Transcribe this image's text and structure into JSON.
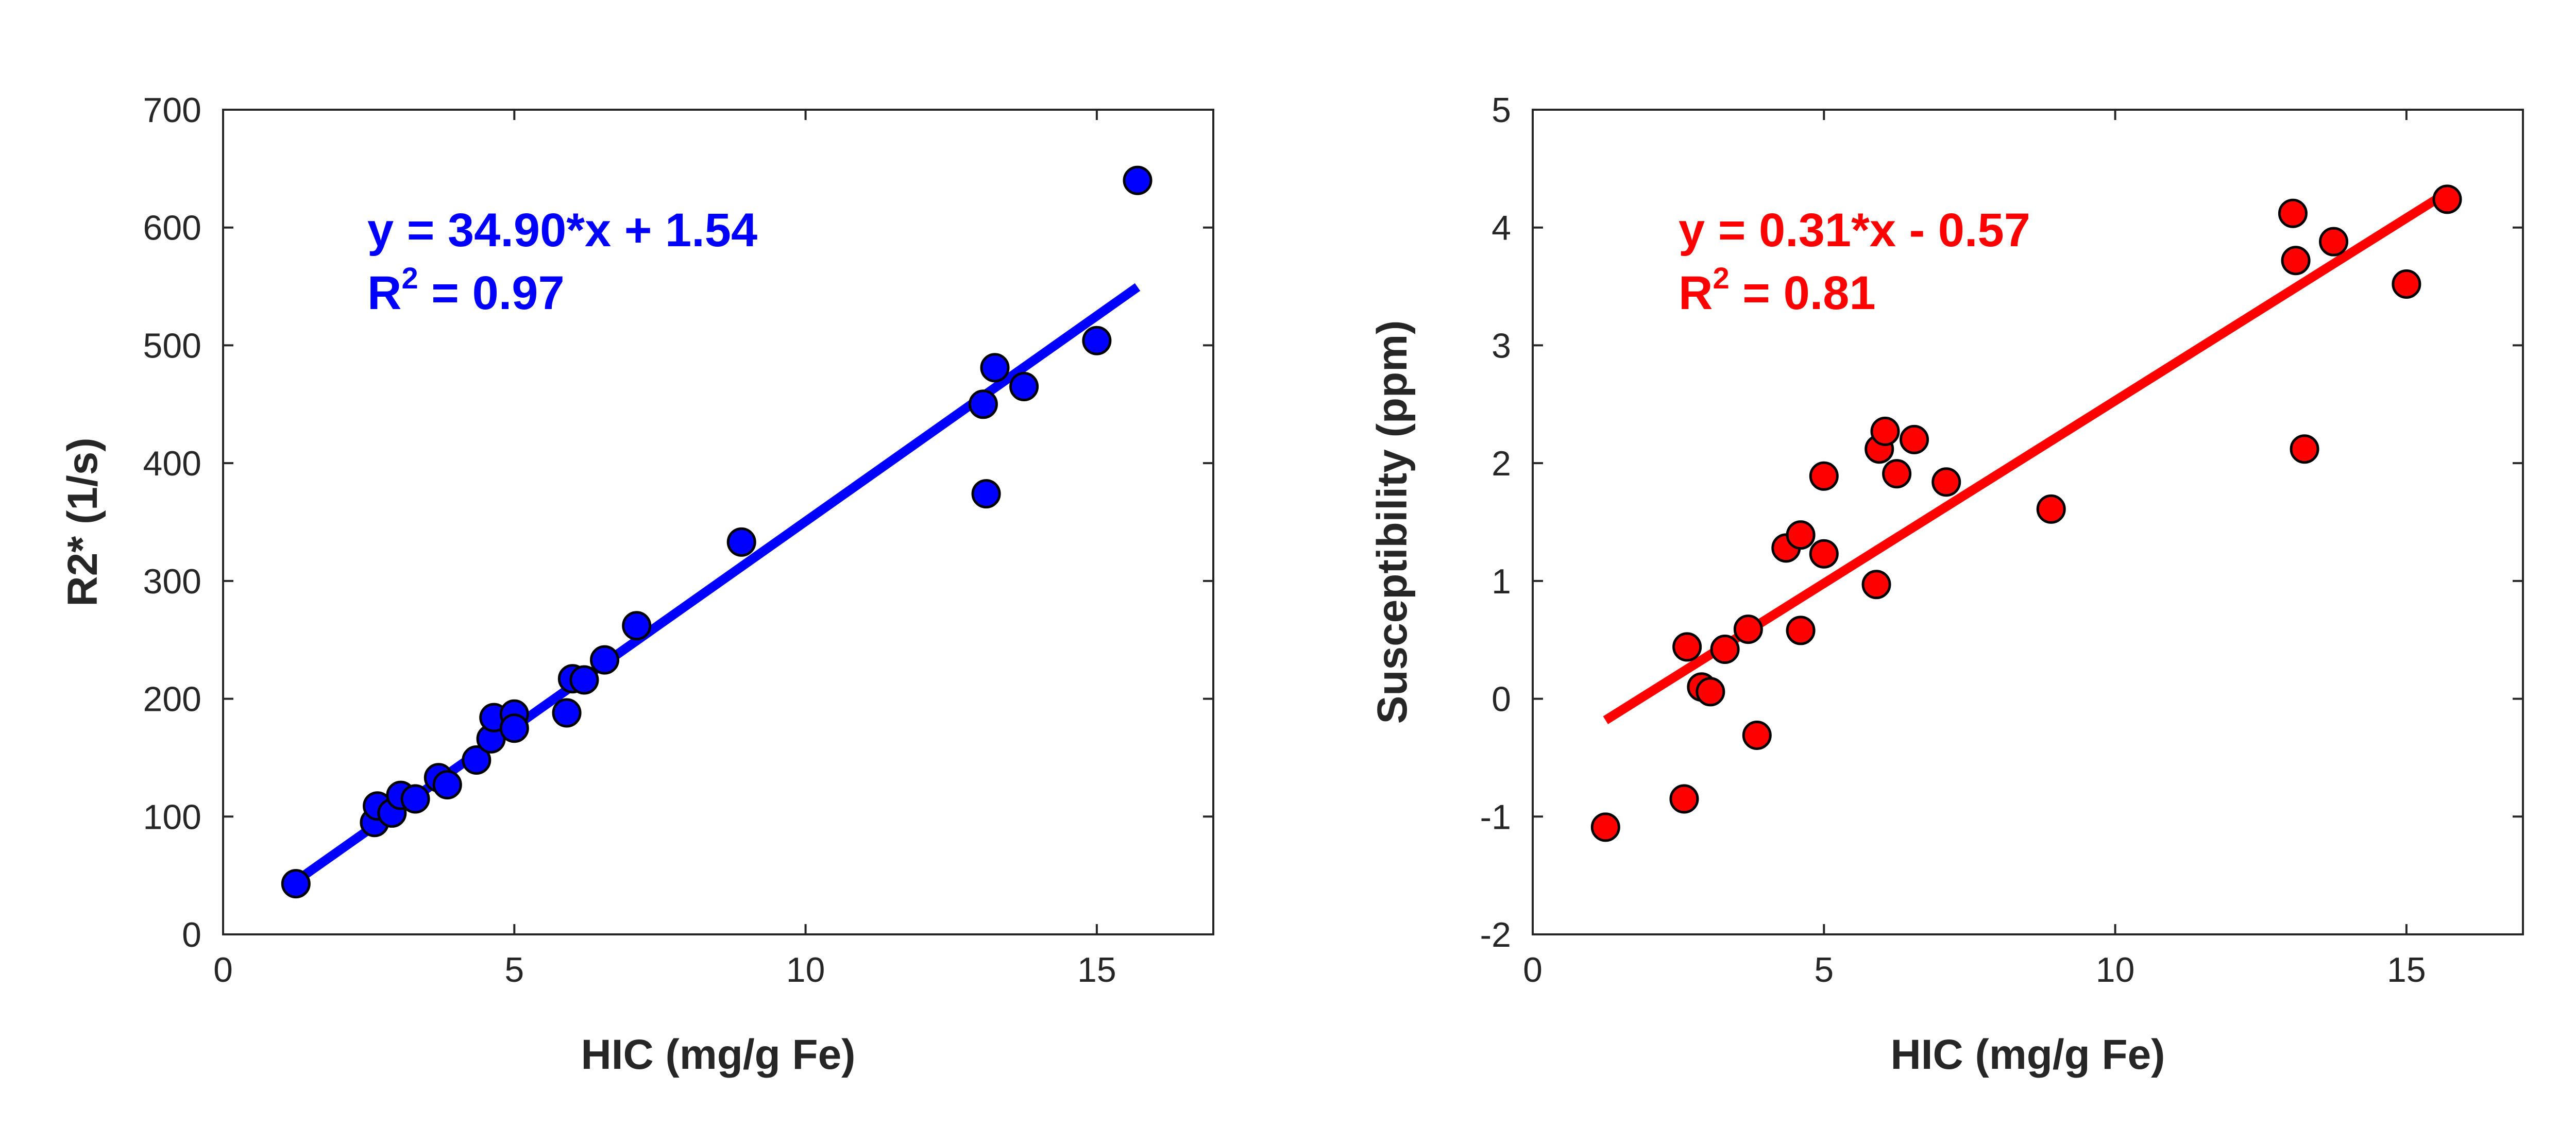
{
  "chart_data": [
    {
      "type": "scatter",
      "xlabel": "HIC (mg/g Fe)",
      "ylabel": "R2* (1/s)",
      "xlim": [
        0,
        17
      ],
      "ylim": [
        0,
        700
      ],
      "xticks": [
        0,
        5,
        10,
        15
      ],
      "yticks": [
        0,
        100,
        200,
        300,
        400,
        500,
        600,
        700
      ],
      "grid": false,
      "color": "#0000ff",
      "fit": {
        "equation": "y = 34.90*x + 1.54",
        "r2_prefix": "R",
        "r2_exp": "2",
        "r2_suffix": " = 0.97",
        "slope": 34.9,
        "intercept": 1.54,
        "x_range": [
          1.25,
          15.7
        ]
      },
      "points": [
        {
          "x": 1.25,
          "y": 43
        },
        {
          "x": 2.6,
          "y": 95
        },
        {
          "x": 2.65,
          "y": 109
        },
        {
          "x": 2.9,
          "y": 103
        },
        {
          "x": 3.05,
          "y": 118
        },
        {
          "x": 3.3,
          "y": 115
        },
        {
          "x": 3.7,
          "y": 133
        },
        {
          "x": 3.85,
          "y": 127
        },
        {
          "x": 4.35,
          "y": 148
        },
        {
          "x": 4.6,
          "y": 166
        },
        {
          "x": 4.65,
          "y": 184
        },
        {
          "x": 5.0,
          "y": 187
        },
        {
          "x": 5.0,
          "y": 175
        },
        {
          "x": 5.9,
          "y": 188
        },
        {
          "x": 6.0,
          "y": 217
        },
        {
          "x": 6.2,
          "y": 216
        },
        {
          "x": 6.55,
          "y": 233
        },
        {
          "x": 7.1,
          "y": 262
        },
        {
          "x": 8.9,
          "y": 333
        },
        {
          "x": 13.05,
          "y": 450
        },
        {
          "x": 13.1,
          "y": 374
        },
        {
          "x": 13.25,
          "y": 481
        },
        {
          "x": 13.75,
          "y": 465
        },
        {
          "x": 15.0,
          "y": 504
        },
        {
          "x": 15.7,
          "y": 640
        }
      ]
    },
    {
      "type": "scatter",
      "xlabel": "HIC (mg/g Fe)",
      "ylabel": "Susceptibility (ppm)",
      "xlim": [
        0,
        17
      ],
      "ylim": [
        -2,
        5
      ],
      "xticks": [
        0,
        5,
        10,
        15
      ],
      "yticks": [
        -2,
        -1,
        0,
        1,
        2,
        3,
        4,
        5
      ],
      "grid": false,
      "color": "#ff0000",
      "fit": {
        "equation": "y = 0.31*x - 0.57",
        "r2_prefix": "R",
        "r2_exp": "2",
        "r2_suffix": " = 0.81",
        "slope": 0.31,
        "intercept": -0.57,
        "x_range": [
          1.25,
          15.7
        ]
      },
      "points": [
        {
          "x": 1.25,
          "y": -1.09
        },
        {
          "x": 2.6,
          "y": -0.85
        },
        {
          "x": 2.65,
          "y": 0.44
        },
        {
          "x": 2.9,
          "y": 0.1
        },
        {
          "x": 3.05,
          "y": 0.06
        },
        {
          "x": 3.3,
          "y": 0.42
        },
        {
          "x": 3.7,
          "y": 0.59
        },
        {
          "x": 3.85,
          "y": -0.31
        },
        {
          "x": 4.35,
          "y": 1.28
        },
        {
          "x": 4.6,
          "y": 1.39
        },
        {
          "x": 4.6,
          "y": 0.58
        },
        {
          "x": 5.0,
          "y": 1.89
        },
        {
          "x": 5.0,
          "y": 1.23
        },
        {
          "x": 5.9,
          "y": 0.97
        },
        {
          "x": 5.95,
          "y": 2.12
        },
        {
          "x": 6.05,
          "y": 2.27
        },
        {
          "x": 6.25,
          "y": 1.91
        },
        {
          "x": 6.55,
          "y": 2.2
        },
        {
          "x": 7.1,
          "y": 1.84
        },
        {
          "x": 8.9,
          "y": 1.61
        },
        {
          "x": 13.05,
          "y": 4.12
        },
        {
          "x": 13.1,
          "y": 3.72
        },
        {
          "x": 13.25,
          "y": 2.12
        },
        {
          "x": 13.75,
          "y": 3.88
        },
        {
          "x": 15.0,
          "y": 3.52
        },
        {
          "x": 15.7,
          "y": 4.24
        }
      ]
    }
  ]
}
